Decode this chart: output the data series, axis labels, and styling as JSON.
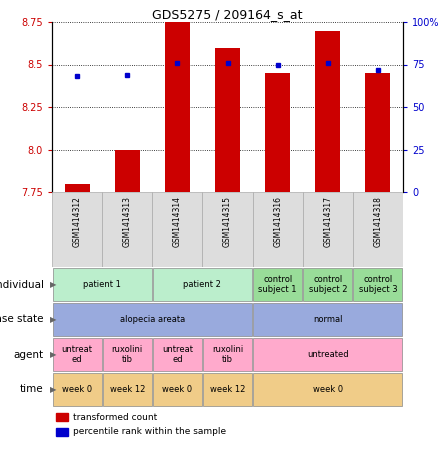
{
  "title": "GDS5275 / 209164_s_at",
  "samples": [
    "GSM1414312",
    "GSM1414313",
    "GSM1414314",
    "GSM1414315",
    "GSM1414316",
    "GSM1414317",
    "GSM1414318"
  ],
  "transformed_count": [
    7.8,
    8.0,
    8.75,
    8.6,
    8.45,
    8.7,
    8.45
  ],
  "percentile_rank": [
    68,
    69,
    76,
    76,
    75,
    76,
    72
  ],
  "ylim_left": [
    7.75,
    8.75
  ],
  "ylim_right": [
    0,
    100
  ],
  "yticks_left": [
    7.75,
    8.0,
    8.25,
    8.5,
    8.75
  ],
  "yticks_right": [
    0,
    25,
    50,
    75,
    100
  ],
  "bar_color": "#cc0000",
  "dot_color": "#0000cc",
  "bg_color": "#ffffff",
  "annotation_rows": [
    {
      "label": "individual",
      "groups": [
        {
          "text": "patient 1",
          "span": [
            0,
            2
          ],
          "color": "#bbeecc"
        },
        {
          "text": "patient 2",
          "span": [
            2,
            4
          ],
          "color": "#bbeecc"
        },
        {
          "text": "control\nsubject 1",
          "span": [
            4,
            5
          ],
          "color": "#99dd99"
        },
        {
          "text": "control\nsubject 2",
          "span": [
            5,
            6
          ],
          "color": "#99dd99"
        },
        {
          "text": "control\nsubject 3",
          "span": [
            6,
            7
          ],
          "color": "#99dd99"
        }
      ]
    },
    {
      "label": "disease state",
      "groups": [
        {
          "text": "alopecia areata",
          "span": [
            0,
            4
          ],
          "color": "#99aadd"
        },
        {
          "text": "normal",
          "span": [
            4,
            7
          ],
          "color": "#99aadd"
        }
      ]
    },
    {
      "label": "agent",
      "groups": [
        {
          "text": "untreat\ned",
          "span": [
            0,
            1
          ],
          "color": "#ffaacc"
        },
        {
          "text": "ruxolini\ntib",
          "span": [
            1,
            2
          ],
          "color": "#ffaacc"
        },
        {
          "text": "untreat\ned",
          "span": [
            2,
            3
          ],
          "color": "#ffaacc"
        },
        {
          "text": "ruxolini\ntib",
          "span": [
            3,
            4
          ],
          "color": "#ffaacc"
        },
        {
          "text": "untreated",
          "span": [
            4,
            7
          ],
          "color": "#ffaacc"
        }
      ]
    },
    {
      "label": "time",
      "groups": [
        {
          "text": "week 0",
          "span": [
            0,
            1
          ],
          "color": "#f0cc88"
        },
        {
          "text": "week 12",
          "span": [
            1,
            2
          ],
          "color": "#f0cc88"
        },
        {
          "text": "week 0",
          "span": [
            2,
            3
          ],
          "color": "#f0cc88"
        },
        {
          "text": "week 12",
          "span": [
            3,
            4
          ],
          "color": "#f0cc88"
        },
        {
          "text": "week 0",
          "span": [
            4,
            7
          ],
          "color": "#f0cc88"
        }
      ]
    }
  ]
}
